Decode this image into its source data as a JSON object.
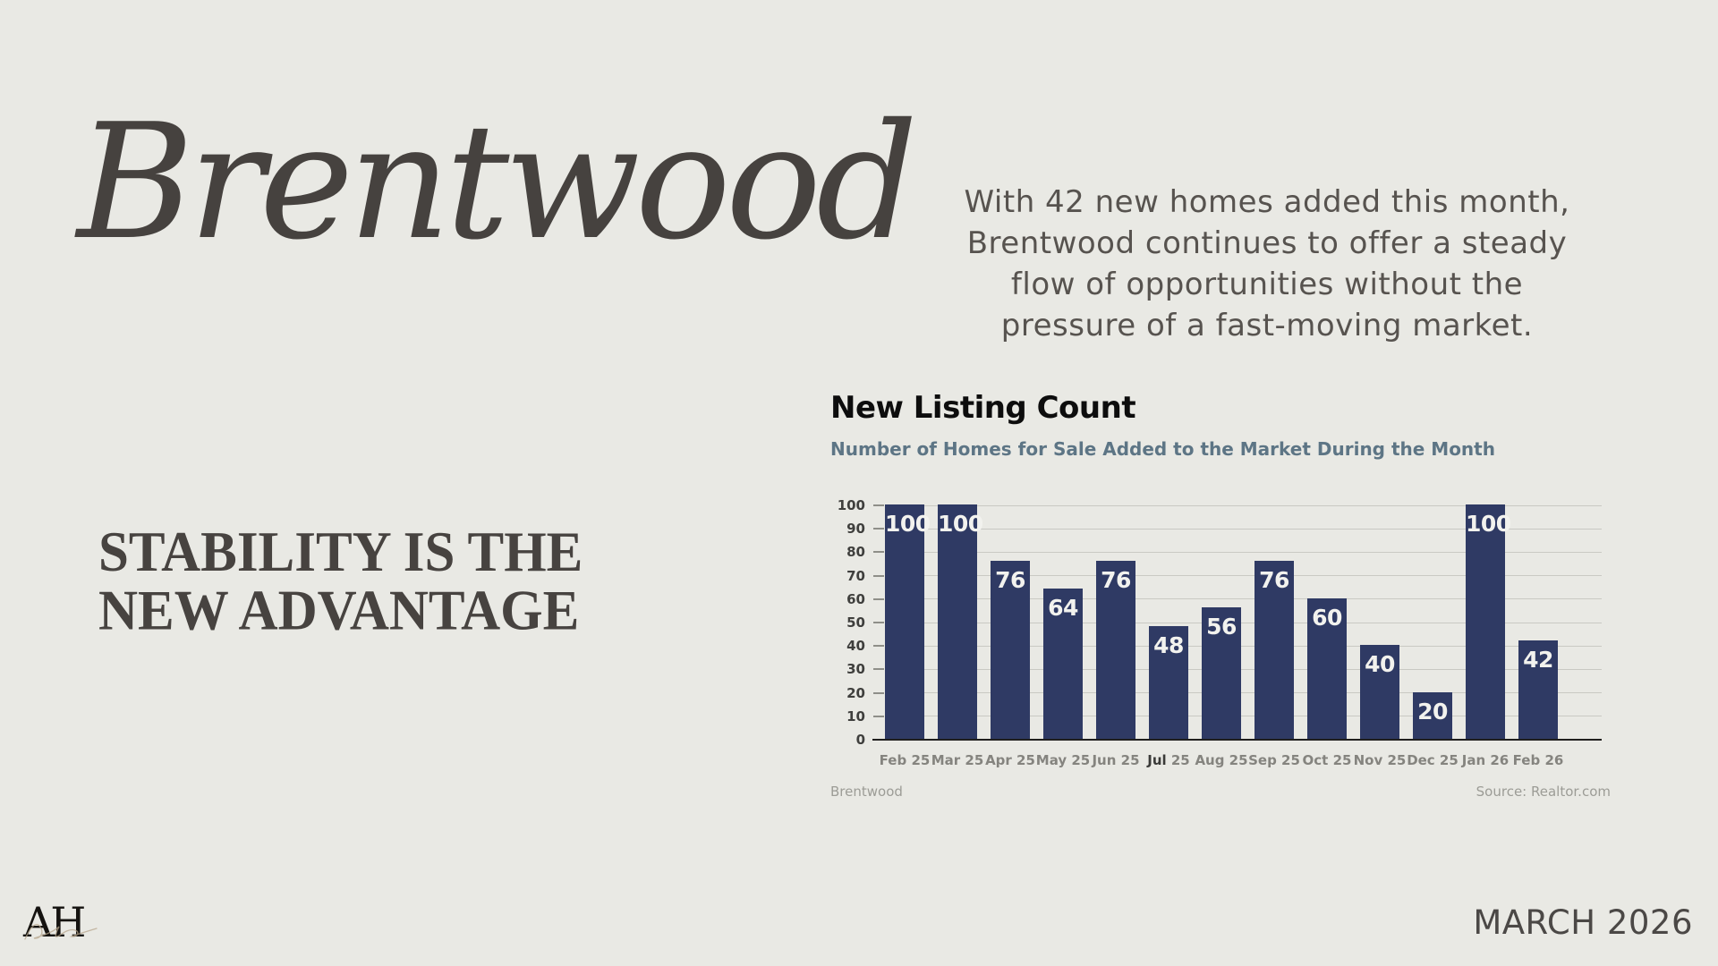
{
  "slide": {
    "background": "#e9e9e4",
    "city_title": "Brentwood",
    "headline_lines": [
      "STABILITY IS THE",
      "NEW ADVANTAGE"
    ],
    "paragraph_lines": [
      "With 42 new homes added this month,",
      "Brentwood continues to offer a steady",
      "flow of opportunities without the",
      "pressure of a fast-moving market."
    ],
    "logo_text": "AH",
    "date": "MARCH 2026"
  },
  "chart_data": {
    "type": "bar",
    "title": "New Listing Count",
    "subtitle": "Number of Homes for Sale Added to the Market During the Month",
    "categories": [
      "Feb 25",
      "Mar 25",
      "Apr 25",
      "May 25",
      "Jun 25",
      "Jul 25",
      "Aug 25",
      "Sep 25",
      "Oct 25",
      "Nov 25",
      "Dec 25",
      "Jan 26",
      "Feb 26"
    ],
    "values": [
      100,
      100,
      76,
      64,
      76,
      48,
      56,
      76,
      60,
      40,
      20,
      100,
      42
    ],
    "highlight_category": "Jul 25",
    "ylim": [
      0,
      100
    ],
    "yticks": [
      0,
      10,
      20,
      30,
      40,
      50,
      60,
      70,
      80,
      90,
      100
    ],
    "grid": "horizontal",
    "legend": "none",
    "bar_color": "#2f3a64",
    "value_label_color": "#f2f2ee",
    "footer_left": "Brentwood",
    "footer_right": "Source: Realtor.com"
  }
}
